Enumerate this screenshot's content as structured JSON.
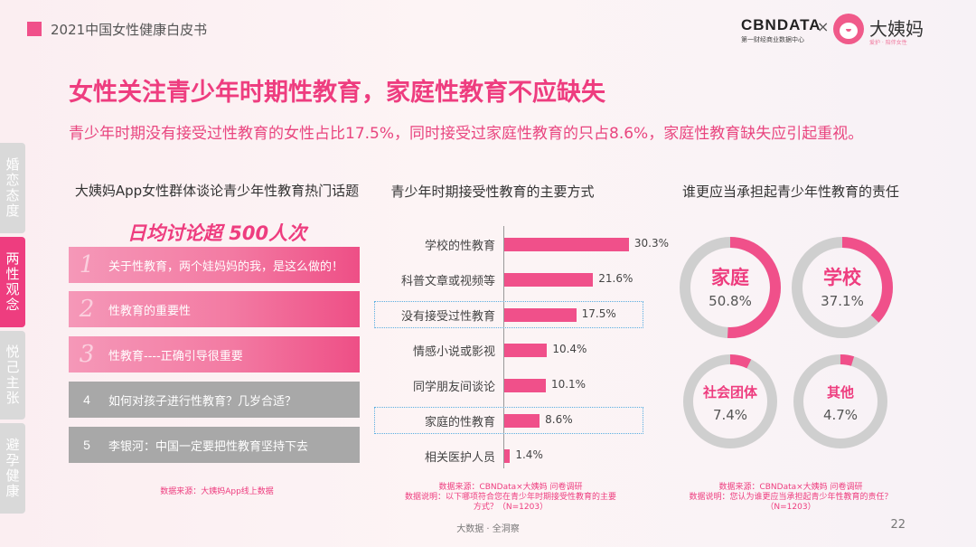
{
  "header": {
    "report_title": "2021中国女性健康白皮书"
  },
  "logo": {
    "cbn": "CBNDATA",
    "cbn_sub": "第一财经商业数据中心",
    "cross": "×",
    "mama": "大姨妈",
    "mama_sub": "爱护 · 陪伴女性"
  },
  "title": "女性关注青少年时期性教育，家庭性教育不应缺失",
  "subtitle": "青少年时期没有接受过性教育的女性占比17.5%，同时接受过家庭性教育的只占8.6%，家庭性教育缺失应引起重视。",
  "side_tabs": [
    {
      "label": "婚恋态度",
      "active": false
    },
    {
      "label": "两性观念",
      "active": true
    },
    {
      "label": "悦己主张",
      "active": false
    },
    {
      "label": "避孕健康",
      "active": false
    }
  ],
  "left": {
    "heading": "大姨妈App女性群体谈论青少年性教育热门话题",
    "highlight": "日均讨论超 500人次",
    "topics": [
      {
        "num": "1",
        "text": "关于性教育，两个娃妈妈的我，是这么做的！",
        "style": "pink"
      },
      {
        "num": "2",
        "text": "性教育的重要性",
        "style": "pink"
      },
      {
        "num": "3",
        "text": "性教育----正确引导很重要",
        "style": "pink"
      },
      {
        "num": "4",
        "text": "如何对孩子进行性教育？几岁合适？",
        "style": "gray"
      },
      {
        "num": "5",
        "text": "李银河：中国一定要把性教育坚持下去",
        "style": "gray"
      }
    ],
    "source": "数据来源：大姨妈App线上数据"
  },
  "chart_data": {
    "type": "bar",
    "orientation": "horizontal",
    "title": "青少年时期接受性教育的主要方式",
    "categories": [
      "学校的性教育",
      "科普文章或视频等",
      "没有接受过性教育",
      "情感小说或影视",
      "同学朋友间谈论",
      "家庭的性教育",
      "相关医护人员"
    ],
    "values": [
      30.3,
      21.6,
      17.5,
      10.4,
      10.1,
      8.6,
      1.4
    ],
    "labels": [
      "30.3%",
      "21.6%",
      "17.5%",
      "10.4%",
      "10.1%",
      "8.6%",
      "1.4%"
    ],
    "highlighted": [
      "没有接受过性教育",
      "家庭的性教育"
    ],
    "bar_color": "#f0508a",
    "highlight_color": "#5aaee0",
    "source_lines": [
      "数据来源：CBNData×大姨妈 问卷调研",
      "数据说明：以下哪项符合您在青少年时期接受性教育的主要",
      "方式？（N=1203）"
    ]
  },
  "right": {
    "heading": "谁更应当承担起青少年性教育的责任",
    "donuts": [
      {
        "label": "家庭",
        "value": 50.8,
        "display": "50.8%"
      },
      {
        "label": "学校",
        "value": 37.1,
        "display": "37.1%"
      },
      {
        "label": "社会团体",
        "value": 7.4,
        "display": "7.4%"
      },
      {
        "label": "其他",
        "value": 4.7,
        "display": "4.7%"
      }
    ],
    "source_lines": [
      "数据来源：CBNData×大姨妈 问卷调研",
      "数据说明：您认为谁更应当承担起青少年性教育的责任？",
      "（N=1203）"
    ]
  },
  "footer": "大数据 · 全洞察",
  "page": "22",
  "colors": {
    "accent": "#ee3d7f",
    "ring_track": "#cfcfcf",
    "ring_fill": "#f0508a"
  }
}
